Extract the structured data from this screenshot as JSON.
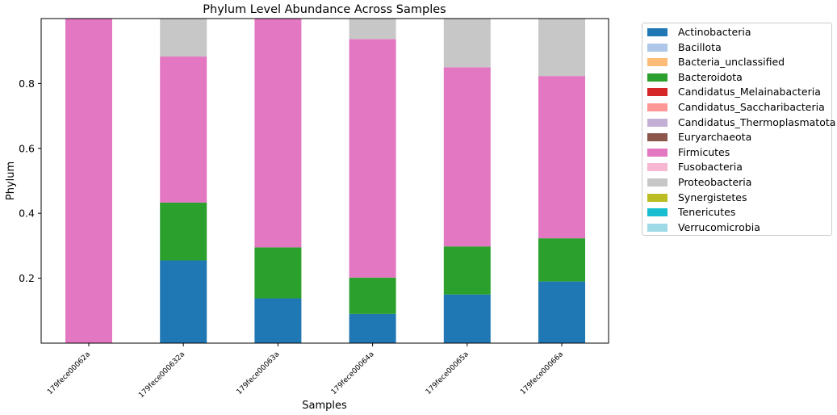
{
  "chart_data": {
    "type": "stacked-bar",
    "title": "Phylum Level Abundance Across Samples",
    "xlabel": "Samples",
    "ylabel": "Phylum",
    "ylim": [
      0,
      1.0
    ],
    "yticks": [
      0.2,
      0.4,
      0.6,
      0.8
    ],
    "ytick_labels": [
      "0.2",
      "0.4",
      "0.6",
      "0.8"
    ],
    "categories": [
      "179fece00062a",
      "179fece000632a",
      "179fece00063a",
      "179fece00064a",
      "179fece00065a",
      "179fece00066a"
    ],
    "series": [
      {
        "name": "Actinobacteria",
        "color": "#1f77b4",
        "values": [
          0.0,
          0.255,
          0.138,
          0.09,
          0.15,
          0.19
        ]
      },
      {
        "name": "Bacillota",
        "color": "#aec7e8",
        "values": [
          0,
          0,
          0,
          0,
          0,
          0
        ]
      },
      {
        "name": "Bacteria_unclassified",
        "color": "#ffbb78",
        "values": [
          0,
          0,
          0,
          0,
          0,
          0
        ]
      },
      {
        "name": "Bacteroidota",
        "color": "#2ca02c",
        "values": [
          0.0,
          0.178,
          0.157,
          0.112,
          0.148,
          0.133
        ]
      },
      {
        "name": "Candidatus_Melainabacteria",
        "color": "#d62728",
        "values": [
          0,
          0,
          0,
          0,
          0,
          0
        ]
      },
      {
        "name": "Candidatus_Saccharibacteria",
        "color": "#ff9896",
        "values": [
          0,
          0,
          0,
          0,
          0,
          0
        ]
      },
      {
        "name": "Candidatus_Thermoplasmatota",
        "color": "#c5b0d5",
        "values": [
          0,
          0,
          0,
          0,
          0,
          0
        ]
      },
      {
        "name": "Euryarchaeota",
        "color": "#8c564b",
        "values": [
          0,
          0,
          0,
          0,
          0,
          0
        ]
      },
      {
        "name": "Firmicutes",
        "color": "#e377c2",
        "values": [
          1.0,
          0.45,
          0.705,
          0.735,
          0.552,
          0.5
        ]
      },
      {
        "name": "Fusobacteria",
        "color": "#f7b6d2",
        "values": [
          0,
          0,
          0,
          0,
          0,
          0
        ]
      },
      {
        "name": "Proteobacteria",
        "color": "#c7c7c7",
        "values": [
          0.0,
          0.117,
          0.0,
          0.063,
          0.15,
          0.177
        ]
      },
      {
        "name": "Synergistetes",
        "color": "#bcbd22",
        "values": [
          0,
          0,
          0,
          0,
          0,
          0
        ]
      },
      {
        "name": "Tenericutes",
        "color": "#17becf",
        "values": [
          0,
          0,
          0,
          0,
          0,
          0
        ]
      },
      {
        "name": "Verrucomicrobia",
        "color": "#9edae5",
        "values": [
          0,
          0,
          0,
          0,
          0,
          0
        ]
      }
    ],
    "legend_position": "outside-right"
  }
}
